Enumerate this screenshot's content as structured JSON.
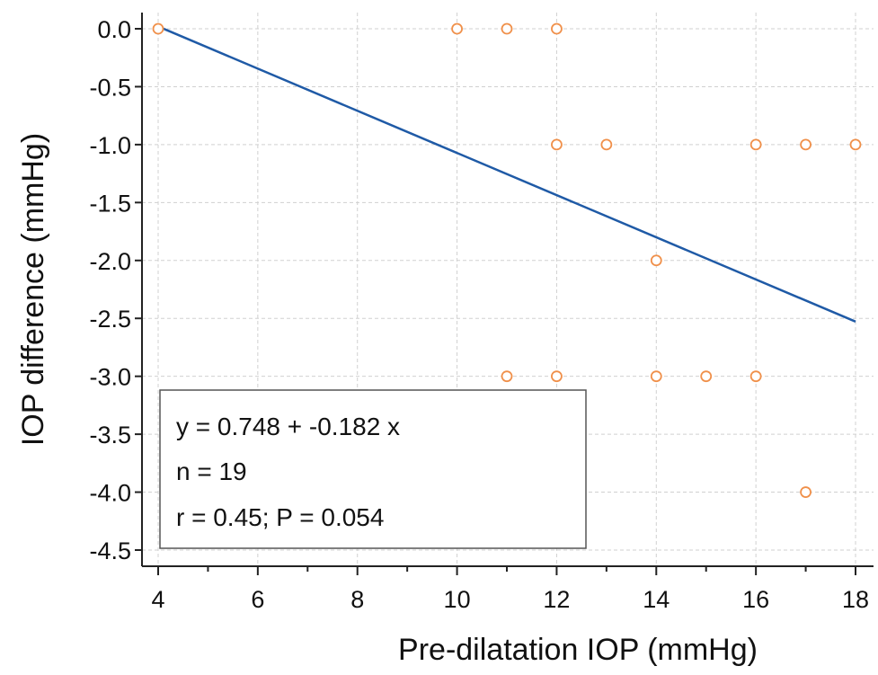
{
  "chart_data": {
    "type": "scatter",
    "xlabel": "Pre-dilatation IOP (mmHg)",
    "ylabel": "IOP difference (mmHg)",
    "xlim": [
      4,
      18
    ],
    "ylim": [
      -4.5,
      0.0
    ],
    "x_ticks": [
      "4",
      "6",
      "8",
      "10",
      "12",
      "14",
      "16",
      "18"
    ],
    "y_ticks": [
      "0.0",
      "-0.5",
      "-1.0",
      "-1.5",
      "-2.0",
      "-2.5",
      "-3.0",
      "-3.5",
      "-4.0",
      "-4.5"
    ],
    "grid": true,
    "points": [
      {
        "x": 4,
        "y": 0.0
      },
      {
        "x": 10,
        "y": 0.0
      },
      {
        "x": 11,
        "y": 0.0
      },
      {
        "x": 12,
        "y": 0.0
      },
      {
        "x": 12,
        "y": -1.0
      },
      {
        "x": 13,
        "y": -1.0
      },
      {
        "x": 16,
        "y": -1.0
      },
      {
        "x": 17,
        "y": -1.0
      },
      {
        "x": 18,
        "y": -1.0
      },
      {
        "x": 14,
        "y": -2.0
      },
      {
        "x": 11,
        "y": -3.0
      },
      {
        "x": 12,
        "y": -3.0
      },
      {
        "x": 14,
        "y": -3.0
      },
      {
        "x": 15,
        "y": -3.0
      },
      {
        "x": 16,
        "y": -3.0
      },
      {
        "x": 17,
        "y": -4.0
      }
    ],
    "regression_line": {
      "intercept": 0.748,
      "slope": -0.182,
      "x_range": [
        4,
        18
      ]
    },
    "annotation": {
      "lines": [
        "y = 0.748 + -0.182 x",
        "n = 19",
        "r = 0.45; P = 0.054"
      ],
      "placement": "bottom-left"
    },
    "colors": {
      "points": "#f0904a",
      "line": "#1f5aa6",
      "grid": "#d0d0d0",
      "axis": "#222222"
    }
  }
}
